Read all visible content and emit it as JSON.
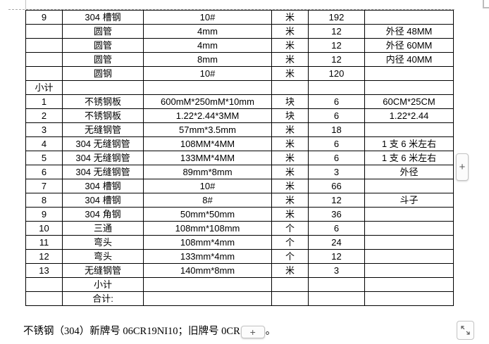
{
  "table": {
    "col_keys": [
      "seq",
      "name",
      "spec",
      "unit",
      "qty",
      "remark"
    ],
    "rows": [
      {
        "seq": "9",
        "name": "304 槽钢",
        "spec": "10#",
        "unit": "米",
        "qty": "192",
        "remark": ""
      },
      {
        "seq": "",
        "name": "圆管",
        "spec": "4mm",
        "unit": "米",
        "qty": "12",
        "remark": "外径 48MM"
      },
      {
        "seq": "",
        "name": "圆管",
        "spec": "4mm",
        "unit": "米",
        "qty": "12",
        "remark": "外径 60MM"
      },
      {
        "seq": "",
        "name": "圆管",
        "spec": "8mm",
        "unit": "米",
        "qty": "12",
        "remark": "内径 40MM"
      },
      {
        "seq": "",
        "name": "圆钢",
        "spec": "10#",
        "unit": "米",
        "qty": "120",
        "remark": ""
      },
      {
        "seq": "小计",
        "name": "",
        "spec": "",
        "unit": "",
        "qty": "",
        "remark": ""
      },
      {
        "seq": "1",
        "name": "不锈钢板",
        "spec": "600mM*250mM*10mm",
        "unit": "块",
        "qty": "6",
        "remark": "60CM*25CM"
      },
      {
        "seq": "2",
        "name": "不锈钢板",
        "spec": "1.22*2.44*3MM",
        "unit": "块",
        "qty": "6",
        "remark": "1.22*2.44"
      },
      {
        "seq": "3",
        "name": "无缝钢管",
        "spec": "57mm*3.5mm",
        "unit": "米",
        "qty": "18",
        "remark": ""
      },
      {
        "seq": "4",
        "name": "304 无缝钢管",
        "spec": "108MM*4MM",
        "unit": "米",
        "qty": "6",
        "remark": "1 支 6 米左右"
      },
      {
        "seq": "5",
        "name": "304 无缝钢管",
        "spec": "133MM*4MM",
        "unit": "米",
        "qty": "6",
        "remark": "1 支 6 米左右"
      },
      {
        "seq": "6",
        "name": "304 无缝钢管",
        "spec": "89mm*8mm",
        "unit": "米",
        "qty": "3",
        "remark": "外径"
      },
      {
        "seq": "7",
        "name": "304 槽钢",
        "spec": "10#",
        "unit": "米",
        "qty": "66",
        "remark": ""
      },
      {
        "seq": "8",
        "name": "304 槽钢",
        "spec": "8#",
        "unit": "米",
        "qty": "12",
        "remark": "斗子"
      },
      {
        "seq": "9",
        "name": "304 角钢",
        "spec": "50mm*50mm",
        "unit": "米",
        "qty": "36",
        "remark": ""
      },
      {
        "seq": "10",
        "name": "三通",
        "spec": "108mm*108mm",
        "unit": "个",
        "qty": "6",
        "remark": ""
      },
      {
        "seq": "11",
        "name": "弯头",
        "spec": "108mm*4mm",
        "unit": "个",
        "qty": "24",
        "remark": ""
      },
      {
        "seq": "12",
        "name": "弯头",
        "spec": "133mm*4mm",
        "unit": "个",
        "qty": "12",
        "remark": ""
      },
      {
        "seq": "13",
        "name": "无缝钢管",
        "spec": "140mm*8mm",
        "unit": "米",
        "qty": "3",
        "remark": ""
      },
      {
        "seq": "",
        "name": "小计",
        "spec": "",
        "unit": "",
        "qty": "",
        "remark": ""
      },
      {
        "seq": "",
        "name": "合计:",
        "spec": "",
        "unit": "",
        "qty": "",
        "remark": ""
      }
    ]
  },
  "note": {
    "text_before": "不锈钢（304）新牌号 06CR19NI10；旧牌号 0CR",
    "text_after": "。"
  },
  "controls": {
    "side_add_label": "+",
    "inline_add_label": "+"
  },
  "colors": {
    "table_border": "#000000",
    "boundary_mark": "#a8a8a8",
    "button_border": "#c3c3c3",
    "button_background": "#fcfcfc",
    "button_symbol": "#5a5a5a"
  }
}
